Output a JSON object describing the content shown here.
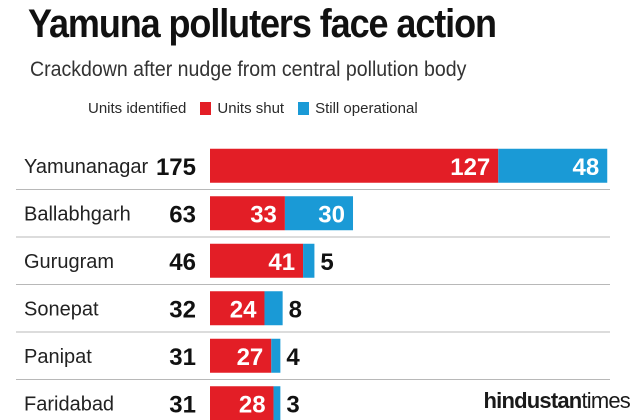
{
  "title": "Yamuna polluters face action",
  "subtitle": "Crackdown after nudge from central pollution body",
  "colors": {
    "shut": "#e31e26",
    "operational": "#1a9ad6",
    "divider": "#b8b8b8"
  },
  "brand": {
    "part1": "hindustan",
    "part2": "times"
  },
  "chart_data": {
    "type": "bar",
    "orientation": "horizontal",
    "stacked": true,
    "categories": [
      "Yamunanagar",
      "Ballabhgarh",
      "Gurugram",
      "Sonepat",
      "Panipat",
      "Faridabad"
    ],
    "totals": {
      "name": "Units identified",
      "values": [
        175,
        63,
        46,
        32,
        31,
        31
      ]
    },
    "series": [
      {
        "name": "Units shut",
        "color": "#e31e26",
        "values": [
          127,
          33,
          41,
          24,
          27,
          28
        ]
      },
      {
        "name": "Still operational",
        "color": "#1a9ad6",
        "values": [
          48,
          30,
          5,
          8,
          4,
          3
        ]
      }
    ],
    "legend": [
      "Units identified",
      "Units shut",
      "Still operational"
    ],
    "legend_position": "top",
    "grid": false
  }
}
